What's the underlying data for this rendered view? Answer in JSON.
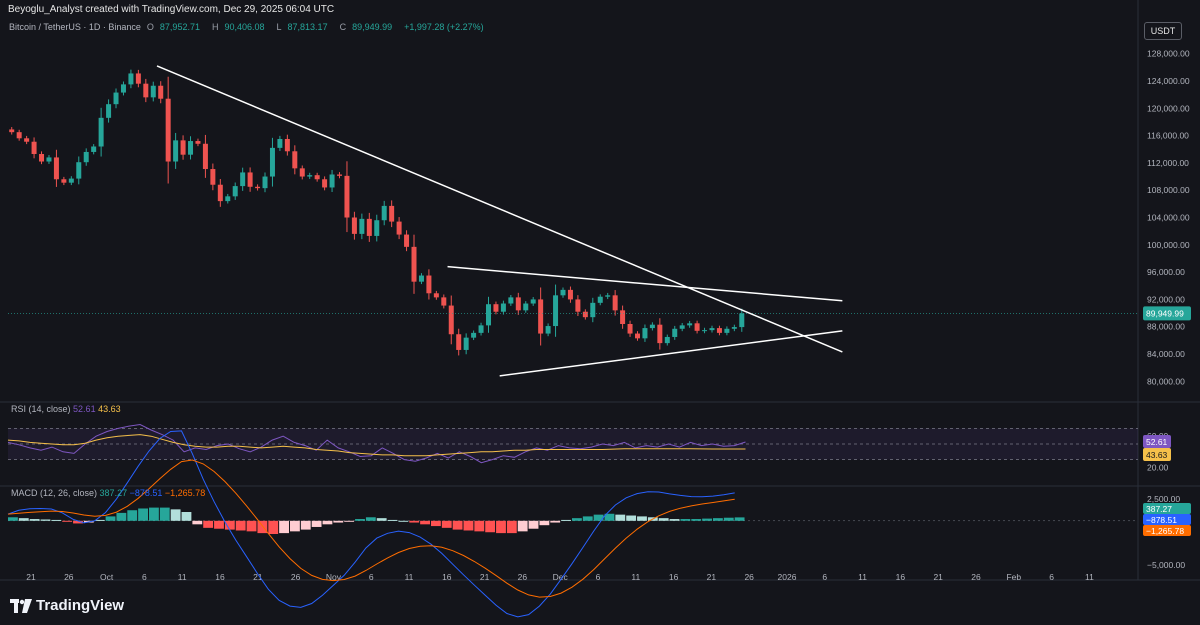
{
  "header": {
    "created_text": "Beyoglu_Analyst created with TradingView.com, Dec 29, 2025 06:04 UTC"
  },
  "symbol": {
    "title": "Bitcoin / TetherUS · 1D · Binance",
    "open_label": "O",
    "open": "87,952.71",
    "high_label": "H",
    "high": "90,406.08",
    "low_label": "L",
    "low": "87,813.17",
    "close_label": "C",
    "close": "89,949.99",
    "change": "+1,997.28 (+2.27%)"
  },
  "currency_button": "USDT",
  "brand": {
    "name": "TradingView"
  },
  "rsi": {
    "label": "RSI (14, close)",
    "value": "52.61",
    "ma_value": "43.63"
  },
  "macd": {
    "label": "MACD (12, 26, close)",
    "hist": "387.27",
    "macd": "−878.51",
    "signal": "−1,265.78"
  },
  "colors": {
    "up": "#26a69a",
    "down": "#ef5350",
    "rsi": "#7e57c2",
    "rsi_ma": "#f5c04a",
    "macd": "#2962ff",
    "signal": "#ff6d00",
    "bg": "#14151b"
  },
  "chart_data": [
    {
      "type": "candlestick",
      "title": "Bitcoin / TetherUS · 1D · Binance",
      "x_ticks": [
        "21",
        "26",
        "Oct",
        "6",
        "11",
        "16",
        "21",
        "26",
        "Nov",
        "6",
        "11",
        "16",
        "21",
        "26",
        "Dec",
        "6",
        "11",
        "16",
        "21",
        "26",
        "2026",
        "6",
        "11",
        "16",
        "21",
        "26",
        "Feb",
        "6",
        "11"
      ],
      "y_ticks": [
        "128,000.00",
        "124,000.00",
        "120,000.00",
        "116,000.00",
        "112,000.00",
        "108,000.00",
        "104,000.00",
        "100,000.00",
        "96,000.00",
        "92,000.00",
        "88,000.00",
        "84,000.00",
        "80,000.00"
      ],
      "ylim": [
        78000,
        130000
      ],
      "x_range": [
        "2025-09-16",
        "2026-02-12"
      ],
      "last_price": "89,949.99",
      "closes": [
        116500,
        115600,
        115100,
        113300,
        112200,
        112800,
        109600,
        109100,
        109700,
        112100,
        113600,
        114400,
        118600,
        120600,
        122300,
        123500,
        125100,
        123600,
        121600,
        123300,
        121400,
        112200,
        115300,
        113200,
        115200,
        114800,
        111100,
        108800,
        106400,
        107100,
        108600,
        110600,
        108500,
        108300,
        110000,
        114200,
        115500,
        113700,
        111200,
        110000,
        110200,
        109600,
        108400,
        110300,
        110100,
        104000,
        101600,
        103800,
        101300,
        103600,
        105700,
        103400,
        101500,
        99700,
        94600,
        95500,
        92900,
        92300,
        91100,
        86900,
        84600,
        86400,
        87100,
        88200,
        91300,
        90200,
        91400,
        92300,
        90400,
        91400,
        92000,
        87000,
        88100,
        92600,
        93400,
        92000,
        90200,
        89400,
        91500,
        92400,
        92600,
        90400,
        88400,
        87000,
        86300,
        87800,
        88300,
        85600,
        86500,
        87700,
        88200,
        88500,
        87400,
        87500,
        87800,
        87100,
        87700,
        87950,
        89950
      ],
      "trendlines": [
        {
          "name": "descending resistance",
          "points": [
            [
              "2025-10-06",
              126200
            ],
            [
              "2026-01-06",
              84300
            ]
          ]
        },
        {
          "name": "triangle upper",
          "points": [
            [
              "2025-11-14",
              96800
            ],
            [
              "2026-01-06",
              91800
            ]
          ]
        },
        {
          "name": "triangle lower",
          "points": [
            [
              "2025-11-21",
              80800
            ],
            [
              "2026-01-06",
              87400
            ]
          ]
        }
      ]
    },
    {
      "type": "line",
      "title": "RSI (14, close)",
      "y_ticks": [
        "60.00",
        "20.00"
      ],
      "levels": [
        70,
        50,
        30
      ],
      "series": [
        {
          "name": "RSI",
          "values": [
            52,
            49,
            45,
            42,
            46,
            40,
            38,
            50,
            60,
            66,
            70,
            73,
            75,
            68,
            62,
            55,
            40,
            45,
            43,
            48,
            50,
            44,
            40,
            46,
            55,
            60,
            52,
            48,
            42,
            55,
            45,
            40,
            34,
            35,
            45,
            38,
            30,
            28,
            32,
            38,
            32,
            40,
            34,
            26,
            30,
            35,
            33,
            40,
            45,
            42,
            48,
            45,
            44,
            46,
            50,
            48,
            52,
            45,
            48,
            46,
            50,
            46,
            52,
            48,
            50,
            47,
            48,
            52.61
          ]
        },
        {
          "name": "RSI-based MA",
          "values": [
            55,
            54,
            52,
            51,
            50,
            49,
            49,
            51,
            55,
            58,
            60,
            61,
            62,
            60,
            56,
            52,
            49,
            47,
            46,
            46,
            47,
            47,
            46,
            45,
            46,
            47,
            46,
            45,
            43,
            42,
            41,
            39,
            38,
            37,
            36,
            36,
            35,
            35,
            35,
            36,
            37,
            38,
            39,
            40,
            40,
            41,
            42,
            42,
            43,
            43,
            43,
            43,
            43,
            43,
            43,
            43.5,
            44,
            44,
            44,
            44,
            44,
            44,
            43.8,
            43.7,
            43.6,
            43.6,
            43.6,
            43.63
          ]
        }
      ]
    },
    {
      "type": "bar",
      "title": "MACD (12, 26, close)",
      "y_ticks": [
        "2,500.00",
        "−5,000.00"
      ],
      "series": [
        {
          "name": "Histogram",
          "values": [
            400,
            300,
            200,
            150,
            100,
            -100,
            -300,
            -200,
            100,
            500,
            900,
            1200,
            1400,
            1500,
            1500,
            1300,
            1000,
            -400,
            -800,
            -900,
            -1000,
            -1100,
            -1200,
            -1400,
            -1500,
            -1400,
            -1200,
            -1000,
            -700,
            -400,
            -200,
            -100,
            200,
            400,
            300,
            100,
            0,
            -200,
            -400,
            -600,
            -800,
            -1000,
            -1100,
            -1200,
            -1300,
            -1400,
            -1400,
            -1200,
            -900,
            -500,
            -200,
            100,
            300,
            500,
            700,
            800,
            700,
            600,
            500,
            400,
            300,
            200,
            200,
            200,
            250,
            300,
            350,
            387.27
          ]
        }
      ]
    }
  ]
}
